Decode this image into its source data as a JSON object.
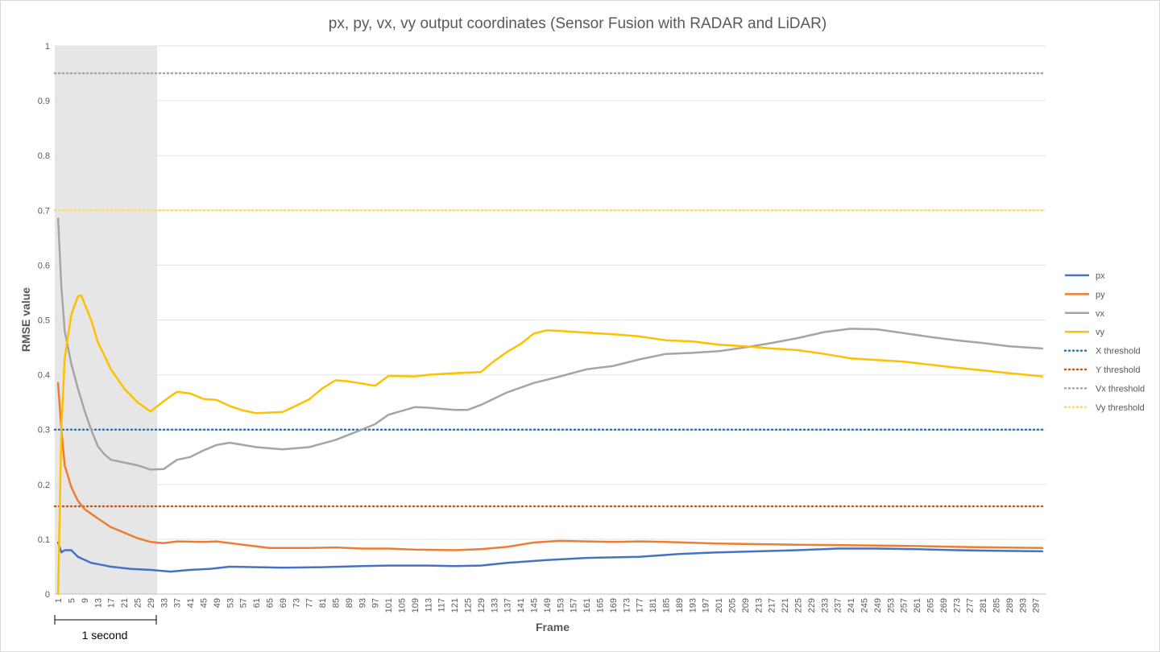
{
  "chart_data": {
    "type": "line",
    "title": "px, py, vx, vy output coordinates (Sensor Fusion with RADAR and LiDAR)",
    "xlabel": "Frame",
    "ylabel": "RMSE value",
    "xlim": [
      1,
      299
    ],
    "ylim": [
      0,
      1
    ],
    "y_ticks": [
      "0",
      "0.1",
      "0.2",
      "0.3",
      "0.4",
      "0.5",
      "0.6",
      "0.7",
      "0.8",
      "0.9",
      "1"
    ],
    "x_ticks": [
      "1",
      "5",
      "9",
      "13",
      "17",
      "21",
      "25",
      "29",
      "33",
      "37",
      "41",
      "45",
      "49",
      "53",
      "57",
      "61",
      "65",
      "69",
      "73",
      "77",
      "81",
      "85",
      "89",
      "93",
      "97",
      "101",
      "105",
      "109",
      "113",
      "117",
      "121",
      "125",
      "129",
      "133",
      "137",
      "141",
      "145",
      "149",
      "153",
      "157",
      "161",
      "165",
      "169",
      "173",
      "177",
      "181",
      "185",
      "189",
      "193",
      "197",
      "201",
      "205",
      "209",
      "213",
      "217",
      "221",
      "225",
      "229",
      "233",
      "237",
      "241",
      "245",
      "249",
      "253",
      "257",
      "261",
      "265",
      "269",
      "273",
      "277",
      "281",
      "285",
      "289",
      "293",
      "297"
    ],
    "grid": true,
    "legend_position": "right",
    "shaded_region": {
      "x_start": 0,
      "x_end": 31,
      "label": "1 second"
    },
    "series": [
      {
        "name": "px",
        "color": "#4472c4",
        "style": "solid",
        "points": [
          [
            1,
            0.094
          ],
          [
            2,
            0.076
          ],
          [
            3,
            0.08
          ],
          [
            5,
            0.08
          ],
          [
            7,
            0.068
          ],
          [
            11,
            0.057
          ],
          [
            17,
            0.05
          ],
          [
            23,
            0.046
          ],
          [
            29,
            0.044
          ],
          [
            35,
            0.041
          ],
          [
            41,
            0.044
          ],
          [
            47,
            0.046
          ],
          [
            53,
            0.05
          ],
          [
            61,
            0.049
          ],
          [
            69,
            0.048
          ],
          [
            81,
            0.049
          ],
          [
            93,
            0.051
          ],
          [
            101,
            0.052
          ],
          [
            113,
            0.052
          ],
          [
            121,
            0.051
          ],
          [
            129,
            0.052
          ],
          [
            137,
            0.057
          ],
          [
            149,
            0.062
          ],
          [
            161,
            0.066
          ],
          [
            177,
            0.068
          ],
          [
            189,
            0.073
          ],
          [
            201,
            0.076
          ],
          [
            213,
            0.078
          ],
          [
            225,
            0.08
          ],
          [
            237,
            0.083
          ],
          [
            249,
            0.083
          ],
          [
            261,
            0.082
          ],
          [
            273,
            0.08
          ],
          [
            285,
            0.079
          ],
          [
            299,
            0.078
          ]
        ]
      },
      {
        "name": "py",
        "color": "#ed7d31",
        "style": "solid",
        "points": [
          [
            1,
            0.385
          ],
          [
            2,
            0.3
          ],
          [
            3,
            0.235
          ],
          [
            5,
            0.195
          ],
          [
            7,
            0.17
          ],
          [
            9,
            0.155
          ],
          [
            13,
            0.138
          ],
          [
            17,
            0.122
          ],
          [
            21,
            0.112
          ],
          [
            25,
            0.102
          ],
          [
            29,
            0.095
          ],
          [
            33,
            0.093
          ],
          [
            37,
            0.096
          ],
          [
            45,
            0.095
          ],
          [
            49,
            0.096
          ],
          [
            57,
            0.09
          ],
          [
            65,
            0.084
          ],
          [
            77,
            0.084
          ],
          [
            85,
            0.085
          ],
          [
            93,
            0.083
          ],
          [
            101,
            0.083
          ],
          [
            109,
            0.081
          ],
          [
            121,
            0.08
          ],
          [
            129,
            0.082
          ],
          [
            137,
            0.086
          ],
          [
            145,
            0.094
          ],
          [
            153,
            0.097
          ],
          [
            161,
            0.096
          ],
          [
            169,
            0.095
          ],
          [
            177,
            0.096
          ],
          [
            185,
            0.095
          ],
          [
            201,
            0.092
          ],
          [
            213,
            0.091
          ],
          [
            225,
            0.09
          ],
          [
            241,
            0.089
          ],
          [
            257,
            0.088
          ],
          [
            273,
            0.086
          ],
          [
            299,
            0.084
          ]
        ]
      },
      {
        "name": "vx",
        "color": "#a5a5a5",
        "style": "solid",
        "points": [
          [
            1,
            0.685
          ],
          [
            2,
            0.56
          ],
          [
            3,
            0.48
          ],
          [
            5,
            0.42
          ],
          [
            7,
            0.375
          ],
          [
            9,
            0.335
          ],
          [
            11,
            0.3
          ],
          [
            13,
            0.27
          ],
          [
            15,
            0.255
          ],
          [
            17,
            0.245
          ],
          [
            21,
            0.24
          ],
          [
            25,
            0.235
          ],
          [
            29,
            0.227
          ],
          [
            33,
            0.228
          ],
          [
            37,
            0.245
          ],
          [
            41,
            0.25
          ],
          [
            45,
            0.262
          ],
          [
            49,
            0.272
          ],
          [
            53,
            0.276
          ],
          [
            61,
            0.268
          ],
          [
            69,
            0.264
          ],
          [
            77,
            0.268
          ],
          [
            85,
            0.281
          ],
          [
            93,
            0.3
          ],
          [
            97,
            0.31
          ],
          [
            101,
            0.327
          ],
          [
            109,
            0.341
          ],
          [
            113,
            0.34
          ],
          [
            121,
            0.336
          ],
          [
            125,
            0.336
          ],
          [
            129,
            0.345
          ],
          [
            137,
            0.368
          ],
          [
            145,
            0.385
          ],
          [
            153,
            0.397
          ],
          [
            161,
            0.41
          ],
          [
            169,
            0.416
          ],
          [
            177,
            0.428
          ],
          [
            185,
            0.438
          ],
          [
            193,
            0.44
          ],
          [
            201,
            0.443
          ],
          [
            209,
            0.45
          ],
          [
            217,
            0.458
          ],
          [
            225,
            0.467
          ],
          [
            233,
            0.478
          ],
          [
            241,
            0.484
          ],
          [
            249,
            0.483
          ],
          [
            257,
            0.476
          ],
          [
            265,
            0.469
          ],
          [
            273,
            0.463
          ],
          [
            281,
            0.458
          ],
          [
            289,
            0.452
          ],
          [
            299,
            0.448
          ]
        ]
      },
      {
        "name": "vy",
        "color": "#ffc000",
        "style": "solid",
        "points": [
          [
            1,
            0.0
          ],
          [
            2,
            0.3
          ],
          [
            3,
            0.43
          ],
          [
            5,
            0.51
          ],
          [
            7,
            0.543
          ],
          [
            8,
            0.545
          ],
          [
            9,
            0.53
          ],
          [
            11,
            0.5
          ],
          [
            13,
            0.46
          ],
          [
            17,
            0.41
          ],
          [
            21,
            0.375
          ],
          [
            25,
            0.35
          ],
          [
            29,
            0.333
          ],
          [
            33,
            0.352
          ],
          [
            37,
            0.369
          ],
          [
            41,
            0.366
          ],
          [
            45,
            0.356
          ],
          [
            49,
            0.354
          ],
          [
            53,
            0.343
          ],
          [
            57,
            0.335
          ],
          [
            61,
            0.33
          ],
          [
            69,
            0.332
          ],
          [
            77,
            0.355
          ],
          [
            81,
            0.375
          ],
          [
            85,
            0.39
          ],
          [
            89,
            0.388
          ],
          [
            93,
            0.384
          ],
          [
            97,
            0.38
          ],
          [
            101,
            0.398
          ],
          [
            109,
            0.397
          ],
          [
            113,
            0.4
          ],
          [
            121,
            0.403
          ],
          [
            129,
            0.405
          ],
          [
            133,
            0.425
          ],
          [
            137,
            0.442
          ],
          [
            141,
            0.456
          ],
          [
            145,
            0.475
          ],
          [
            149,
            0.481
          ],
          [
            153,
            0.48
          ],
          [
            161,
            0.477
          ],
          [
            169,
            0.474
          ],
          [
            177,
            0.47
          ],
          [
            185,
            0.463
          ],
          [
            193,
            0.461
          ],
          [
            201,
            0.455
          ],
          [
            209,
            0.452
          ],
          [
            217,
            0.448
          ],
          [
            225,
            0.445
          ],
          [
            233,
            0.438
          ],
          [
            241,
            0.43
          ],
          [
            257,
            0.424
          ],
          [
            273,
            0.413
          ],
          [
            289,
            0.403
          ],
          [
            299,
            0.397
          ]
        ]
      },
      {
        "name": "X threshold",
        "color": "#2e75b6",
        "style": "dotted",
        "value": 0.3
      },
      {
        "name": "Y threshold",
        "color": "#c55a11",
        "style": "dotted",
        "value": 0.16
      },
      {
        "name": "Vx threshold",
        "color": "#a5a5a5",
        "style": "dotted",
        "value": 0.95
      },
      {
        "name": "Vy threshold",
        "color": "#ffd966",
        "style": "dotted",
        "value": 0.7
      }
    ]
  }
}
